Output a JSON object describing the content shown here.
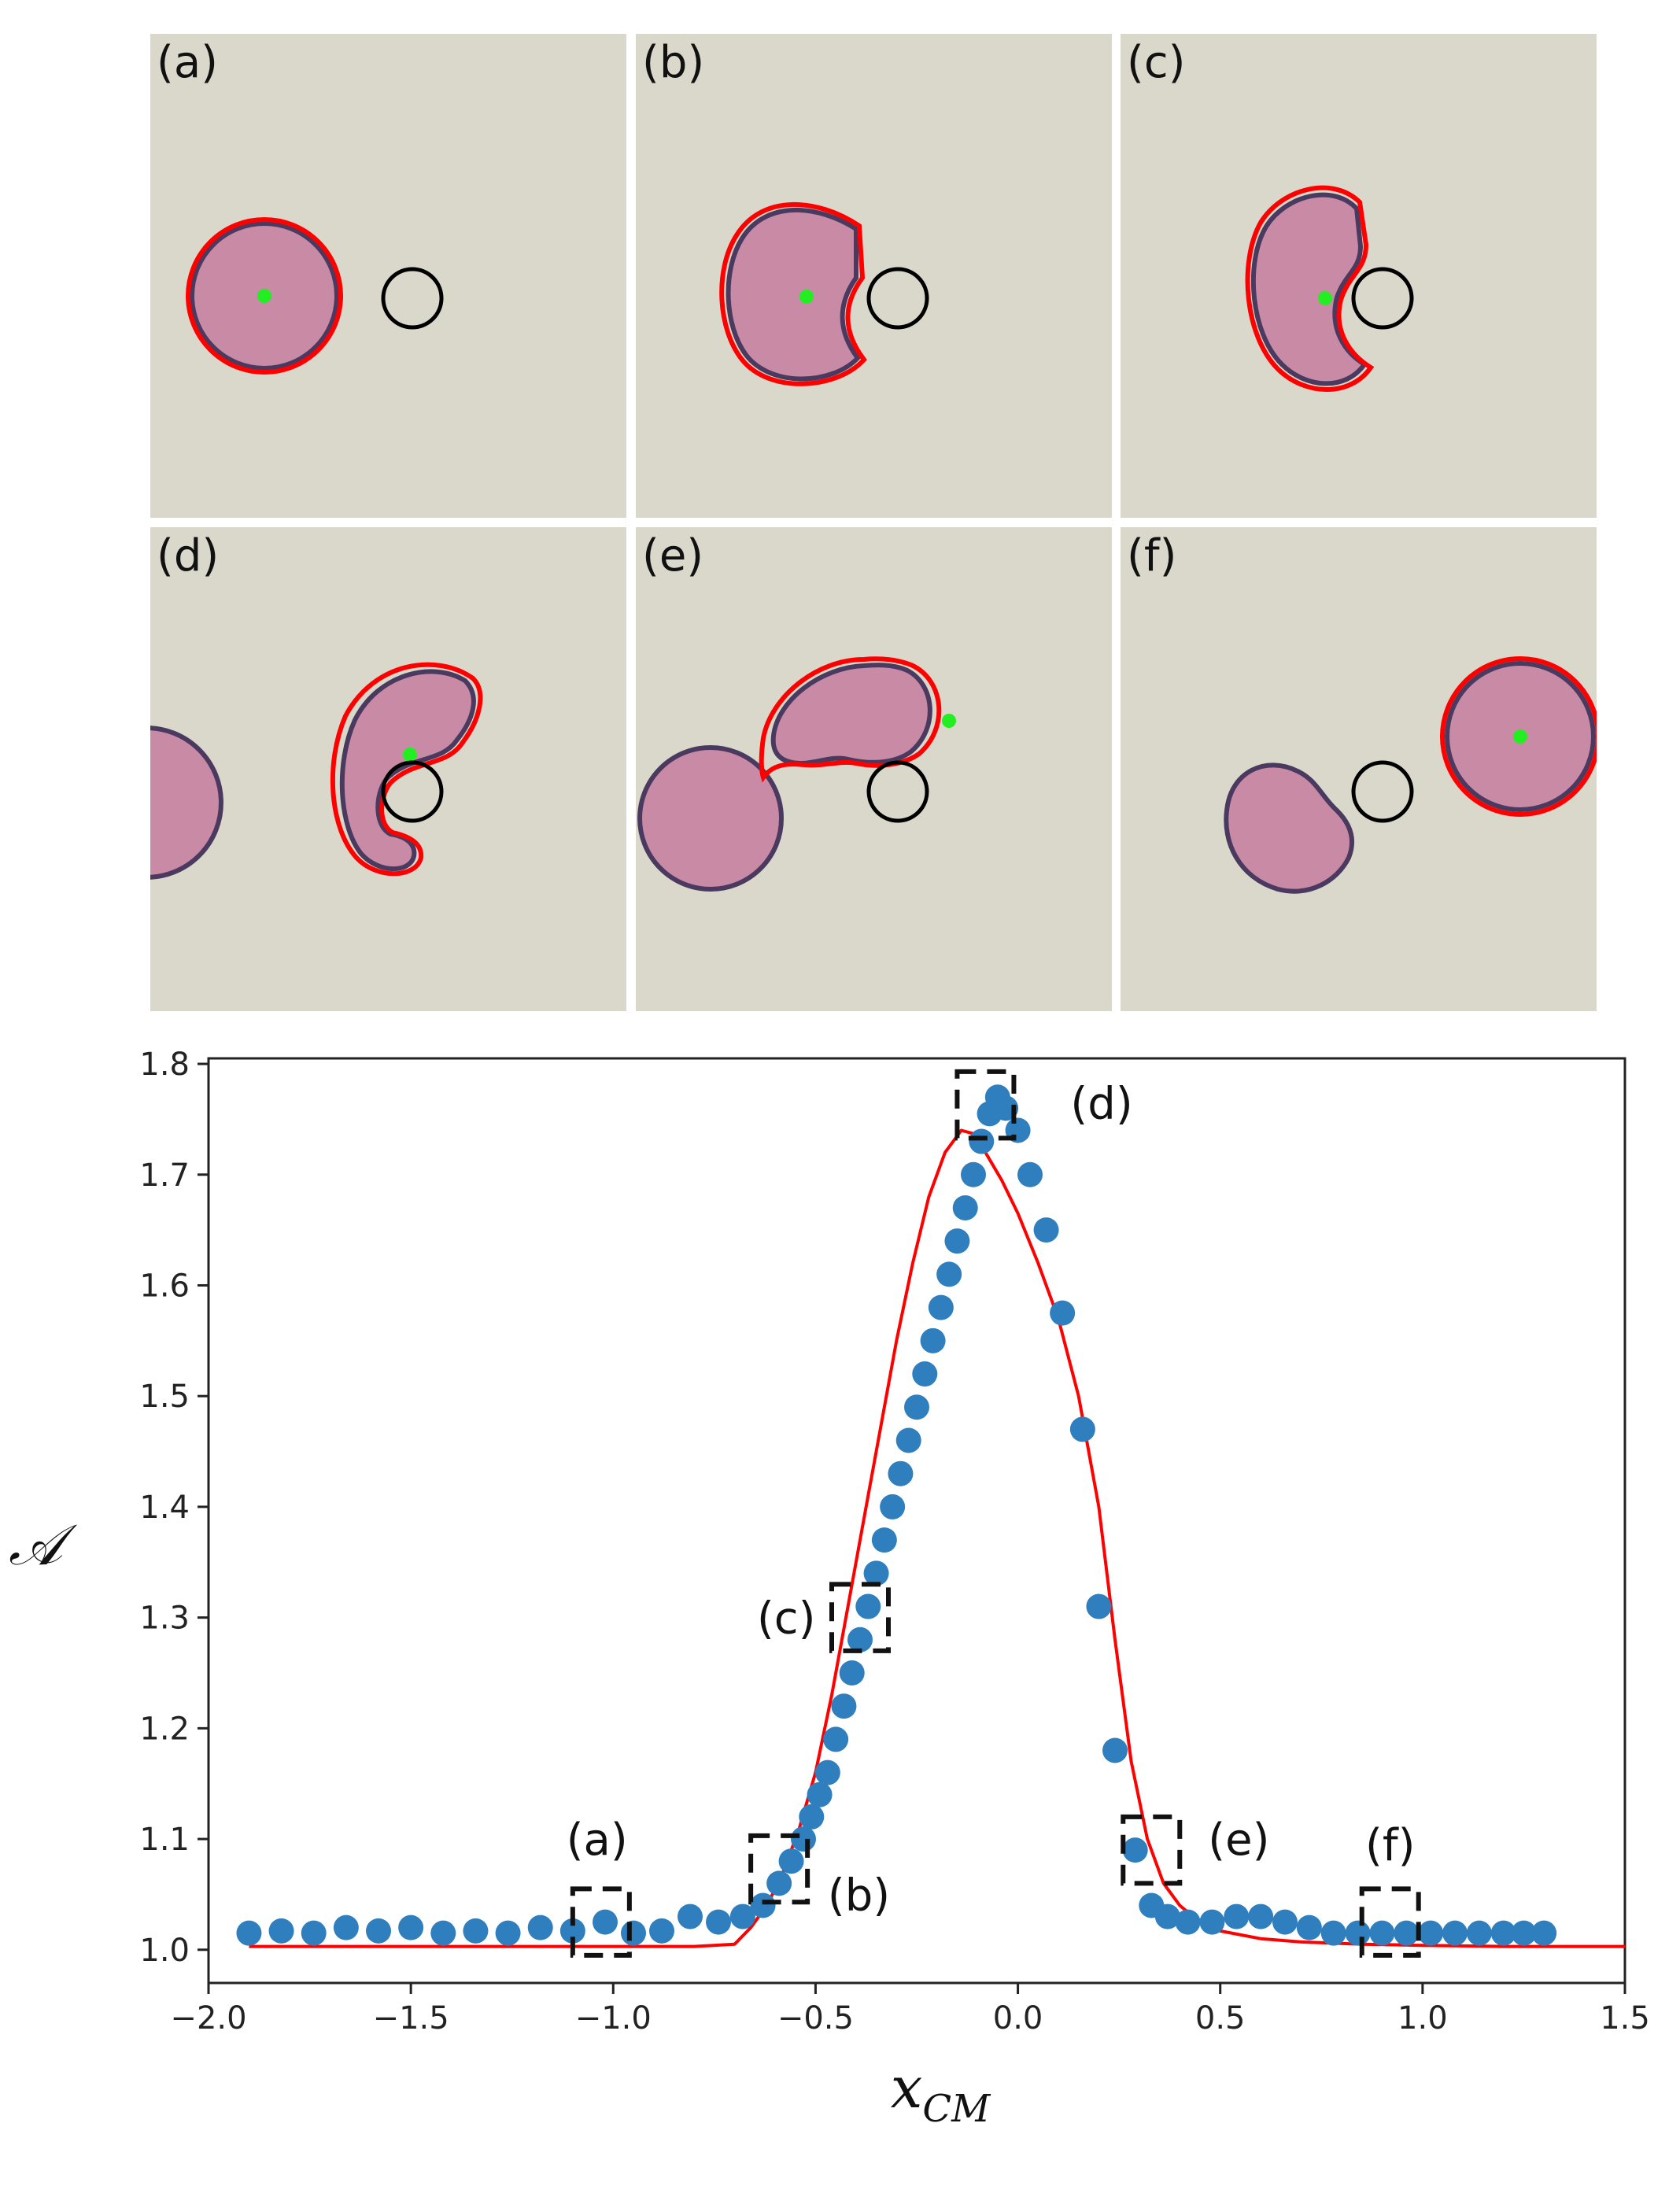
{
  "panels": [
    {
      "id": "a",
      "label": "(a)"
    },
    {
      "id": "b",
      "label": "(b)"
    },
    {
      "id": "c",
      "label": "(c)"
    },
    {
      "id": "d",
      "label": "(d)"
    },
    {
      "id": "e",
      "label": "(e)"
    },
    {
      "id": "f",
      "label": "(f)"
    }
  ],
  "colors": {
    "droplet": "#c98aa6",
    "droplet_edge": "#4a3a60",
    "contour": "#ff0000",
    "centroid": "#22ee22",
    "obstacle": "#000000",
    "background": "#dad8cb",
    "scatter": "#2f7fbf",
    "fit_line": "#ff0000"
  },
  "chart_data": {
    "type": "scatter",
    "xlabel": "x",
    "xlabel_sub": "CM",
    "ylabel": "𝒜",
    "xlim": [
      -2.0,
      1.5
    ],
    "ylim": [
      0.97,
      1.805
    ],
    "xticks": [
      -2.0,
      -1.5,
      -1.0,
      -0.5,
      0.0,
      0.5,
      1.0,
      1.5
    ],
    "xtick_labels": [
      "−2.0",
      "−1.5",
      "−1.0",
      "−0.5",
      "0.0",
      "0.5",
      "1.0",
      "1.5"
    ],
    "yticks": [
      1.0,
      1.1,
      1.2,
      1.3,
      1.4,
      1.5,
      1.6,
      1.7,
      1.8
    ],
    "ytick_labels": [
      "1.0",
      "1.1",
      "1.2",
      "1.3",
      "1.4",
      "1.5",
      "1.6",
      "1.7",
      "1.8"
    ],
    "grid": false,
    "series": [
      {
        "kind": "scatter",
        "color": "#2f7fbf",
        "x": [
          -1.9,
          -1.82,
          -1.74,
          -1.66,
          -1.58,
          -1.5,
          -1.42,
          -1.34,
          -1.26,
          -1.18,
          -1.1,
          -1.02,
          -0.95,
          -0.88,
          -0.81,
          -0.74,
          -0.68,
          -0.63,
          -0.59,
          -0.56,
          -0.53,
          -0.51,
          -0.49,
          -0.47,
          -0.45,
          -0.43,
          -0.41,
          -0.39,
          -0.37,
          -0.35,
          -0.33,
          -0.31,
          -0.29,
          -0.27,
          -0.25,
          -0.23,
          -0.21,
          -0.19,
          -0.17,
          -0.15,
          -0.13,
          -0.11,
          -0.09,
          -0.07,
          -0.05,
          -0.03,
          0.0,
          0.03,
          0.07,
          0.11,
          0.16,
          0.2,
          0.24,
          0.29,
          0.33,
          0.37,
          0.42,
          0.48,
          0.54,
          0.6,
          0.66,
          0.72,
          0.78,
          0.84,
          0.9,
          0.96,
          1.02,
          1.08,
          1.14,
          1.2,
          1.25,
          1.3
        ],
        "y": [
          1.015,
          1.017,
          1.015,
          1.02,
          1.017,
          1.02,
          1.015,
          1.017,
          1.015,
          1.02,
          1.017,
          1.025,
          1.015,
          1.017,
          1.03,
          1.025,
          1.03,
          1.04,
          1.06,
          1.08,
          1.1,
          1.12,
          1.14,
          1.16,
          1.19,
          1.22,
          1.25,
          1.28,
          1.31,
          1.34,
          1.37,
          1.4,
          1.43,
          1.46,
          1.49,
          1.52,
          1.55,
          1.58,
          1.61,
          1.64,
          1.67,
          1.7,
          1.73,
          1.755,
          1.77,
          1.76,
          1.74,
          1.7,
          1.65,
          1.575,
          1.47,
          1.31,
          1.18,
          1.09,
          1.04,
          1.03,
          1.025,
          1.025,
          1.03,
          1.03,
          1.025,
          1.02,
          1.015,
          1.015,
          1.015,
          1.015,
          1.015,
          1.015,
          1.015,
          1.015,
          1.015,
          1.015
        ]
      },
      {
        "kind": "line",
        "color": "#ff0000",
        "x": [
          -1.9,
          -1.6,
          -1.3,
          -1.0,
          -0.8,
          -0.7,
          -0.66,
          -0.62,
          -0.58,
          -0.54,
          -0.5,
          -0.46,
          -0.42,
          -0.38,
          -0.34,
          -0.3,
          -0.26,
          -0.22,
          -0.18,
          -0.14,
          -0.11,
          -0.08,
          -0.04,
          0.0,
          0.05,
          0.1,
          0.15,
          0.2,
          0.24,
          0.28,
          0.32,
          0.36,
          0.4,
          0.45,
          0.5,
          0.6,
          0.7,
          0.85,
          1.0,
          1.2,
          1.5
        ],
        "y": [
          1.003,
          1.003,
          1.003,
          1.003,
          1.003,
          1.005,
          1.02,
          1.04,
          1.07,
          1.11,
          1.16,
          1.23,
          1.31,
          1.39,
          1.47,
          1.55,
          1.62,
          1.68,
          1.72,
          1.74,
          1.737,
          1.72,
          1.695,
          1.665,
          1.62,
          1.57,
          1.5,
          1.4,
          1.28,
          1.17,
          1.1,
          1.06,
          1.04,
          1.025,
          1.017,
          1.01,
          1.007,
          1.005,
          1.004,
          1.003,
          1.003
        ]
      }
    ],
    "annotations": [
      {
        "label": "(a)",
        "box_x": [
          -1.1,
          -0.96
        ],
        "box_y": [
          0.995,
          1.055
        ],
        "label_x": -1.04,
        "label_y": 1.1,
        "anchor": "middle"
      },
      {
        "label": "(b)",
        "box_x": [
          -0.66,
          -0.52
        ],
        "box_y": [
          1.043,
          1.103
        ],
        "label_x": -0.47,
        "label_y": 1.05,
        "anchor": "start"
      },
      {
        "label": "(c)",
        "box_x": [
          -0.46,
          -0.32
        ],
        "box_y": [
          1.27,
          1.33
        ],
        "label_x": -0.5,
        "label_y": 1.3,
        "anchor": "end"
      },
      {
        "label": "(d)",
        "box_x": [
          -0.15,
          -0.01
        ],
        "box_y": [
          1.733,
          1.793
        ],
        "label_x": 0.13,
        "label_y": 1.765,
        "anchor": "start"
      },
      {
        "label": "(e)",
        "box_x": [
          0.26,
          0.4
        ],
        "box_y": [
          1.06,
          1.12
        ],
        "label_x": 0.47,
        "label_y": 1.1,
        "anchor": "start"
      },
      {
        "label": "(f)",
        "box_x": [
          0.85,
          0.99
        ],
        "box_y": [
          0.995,
          1.055
        ],
        "label_x": 0.92,
        "label_y": 1.095,
        "anchor": "middle"
      }
    ]
  }
}
